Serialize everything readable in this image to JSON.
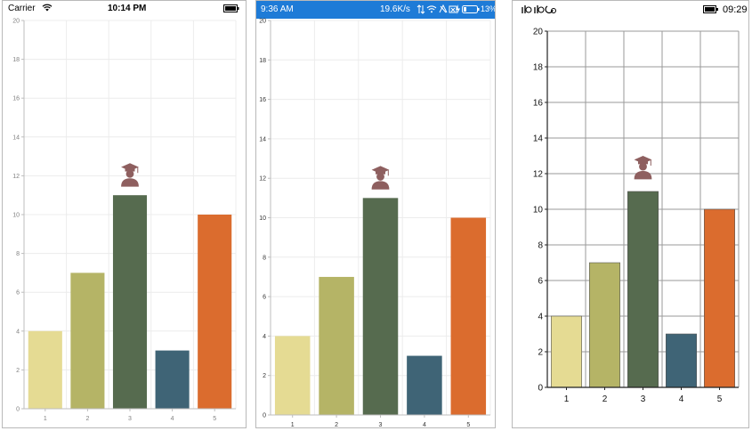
{
  "phones": [
    {
      "status": {
        "carrier": "Carrier",
        "time": "10:14 PM"
      },
      "chart_data": {
        "type": "bar",
        "categories": [
          "1",
          "2",
          "3",
          "4",
          "5"
        ],
        "values": [
          4,
          7,
          11,
          3,
          10
        ],
        "ylim": [
          0,
          20
        ],
        "yticks": [
          "0",
          "2",
          "4",
          "6",
          "8",
          "10",
          "12",
          "14",
          "16",
          "18",
          "20"
        ],
        "colors": [
          "#e5db93",
          "#b5b466",
          "#566b4f",
          "#3f6476",
          "#db6c2e"
        ],
        "grid": true,
        "marker": {
          "category": "3",
          "icon": "graduate-icon"
        }
      }
    },
    {
      "status": {
        "time": "9:36 AM",
        "speed": "19.6K/s",
        "battery": "13%"
      },
      "chart_data": {
        "type": "bar",
        "categories": [
          "1",
          "2",
          "3",
          "4",
          "5"
        ],
        "values": [
          4,
          7,
          11,
          3,
          10
        ],
        "ylim": [
          0,
          20
        ],
        "yticks": [
          "0",
          "2",
          "4",
          "6",
          "8",
          "10",
          "12",
          "14",
          "16",
          "18",
          "20"
        ],
        "colors": [
          "#e5db93",
          "#b5b466",
          "#566b4f",
          "#3f6476",
          "#db6c2e"
        ],
        "grid": true,
        "marker": {
          "category": "3",
          "icon": "graduate-icon"
        }
      }
    },
    {
      "status": {
        "time": "09:29"
      },
      "chart_data": {
        "type": "bar",
        "categories": [
          "1",
          "2",
          "3",
          "4",
          "5"
        ],
        "values": [
          4,
          7,
          11,
          3,
          10
        ],
        "ylim": [
          0,
          20
        ],
        "yticks": [
          "0",
          "2",
          "4",
          "6",
          "8",
          "10",
          "12",
          "14",
          "16",
          "18",
          "20"
        ],
        "colors": [
          "#e5db93",
          "#b5b466",
          "#566b4f",
          "#3f6476",
          "#db6c2e"
        ],
        "grid": true,
        "marker": {
          "category": "3",
          "icon": "graduate-icon"
        }
      }
    }
  ]
}
